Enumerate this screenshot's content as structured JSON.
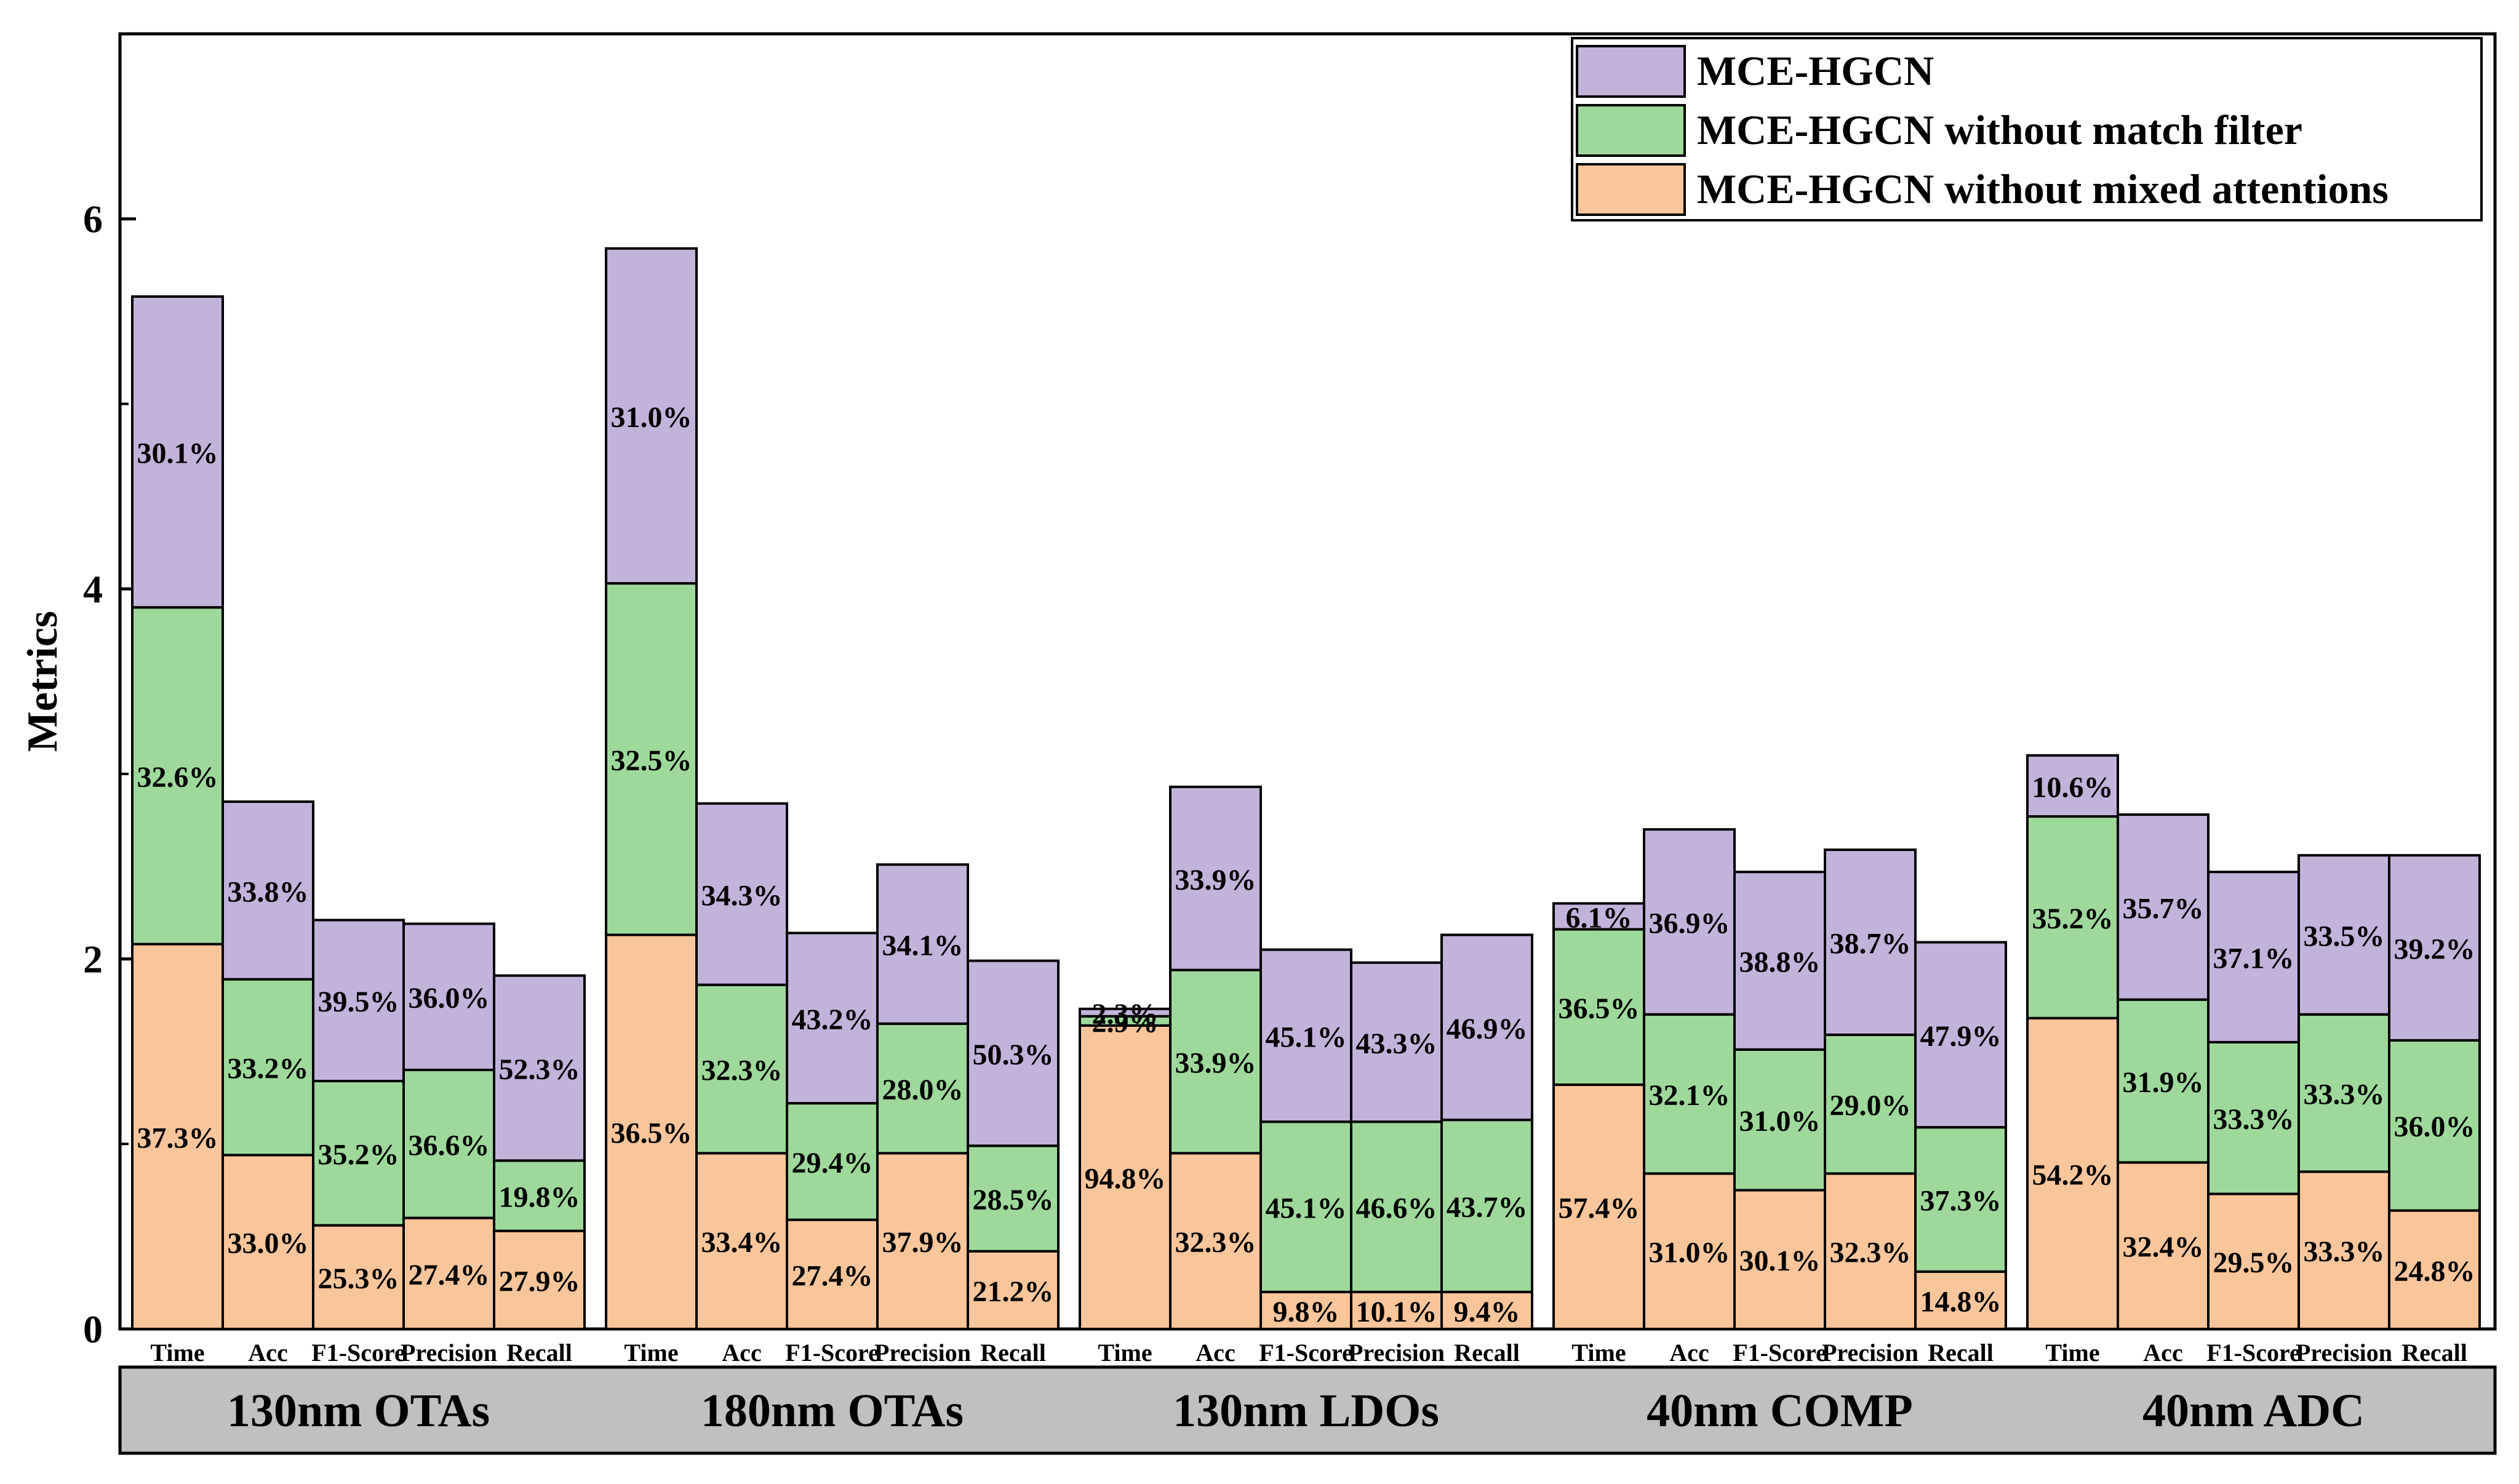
{
  "colors": {
    "orange": "#F9C59B",
    "green": "#9ED99B",
    "purple": "#C2B3DB",
    "band": "#C0C0C0",
    "stroke": "#000000"
  },
  "chart_data": {
    "type": "bar",
    "subtype": "stacked",
    "title": "",
    "xlabel": "",
    "ylabel": "Metrics",
    "ylim": [
      0,
      7
    ],
    "yticks": [
      0,
      2,
      4,
      6
    ],
    "grid": false,
    "legend_position": "top-right",
    "series": [
      {
        "name": "MCE-HGCN",
        "color": "purple"
      },
      {
        "name": "MCE-HGCN without match filter",
        "color": "green"
      },
      {
        "name": "MCE-HGCN without mixed attentions",
        "color": "orange"
      }
    ],
    "groups": [
      {
        "name": "130nm OTAs",
        "bars": [
          {
            "metric": "Time",
            "segments": [
              {
                "series": "MCE-HGCN without mixed attentions",
                "value": 2.08,
                "label": "37.3%"
              },
              {
                "series": "MCE-HGCN without match filter",
                "value": 1.82,
                "label": "32.6%"
              },
              {
                "series": "MCE-HGCN",
                "value": 1.68,
                "label": "30.1%"
              }
            ]
          },
          {
            "metric": "Acc",
            "segments": [
              {
                "series": "MCE-HGCN without mixed attentions",
                "value": 0.94,
                "label": "33.0%"
              },
              {
                "series": "MCE-HGCN without match filter",
                "value": 0.95,
                "label": "33.2%"
              },
              {
                "series": "MCE-HGCN",
                "value": 0.96,
                "label": "33.8%"
              }
            ]
          },
          {
            "metric": "F1-Score",
            "segments": [
              {
                "series": "MCE-HGCN without mixed attentions",
                "value": 0.56,
                "label": "25.3%"
              },
              {
                "series": "MCE-HGCN without match filter",
                "value": 0.78,
                "label": "35.2%"
              },
              {
                "series": "MCE-HGCN",
                "value": 0.87,
                "label": "39.5%"
              }
            ]
          },
          {
            "metric": "Precision",
            "segments": [
              {
                "series": "MCE-HGCN without mixed attentions",
                "value": 0.6,
                "label": "27.4%"
              },
              {
                "series": "MCE-HGCN without match filter",
                "value": 0.8,
                "label": "36.6%"
              },
              {
                "series": "MCE-HGCN",
                "value": 0.79,
                "label": "36.0%"
              }
            ]
          },
          {
            "metric": "Recall",
            "segments": [
              {
                "series": "MCE-HGCN without mixed attentions",
                "value": 0.53,
                "label": "27.9%"
              },
              {
                "series": "MCE-HGCN without match filter",
                "value": 0.38,
                "label": "19.8%"
              },
              {
                "series": "MCE-HGCN",
                "value": 1.0,
                "label": "52.3%"
              }
            ]
          }
        ]
      },
      {
        "name": "180nm OTAs",
        "bars": [
          {
            "metric": "Time",
            "segments": [
              {
                "series": "MCE-HGCN without mixed attentions",
                "value": 2.13,
                "label": "36.5%"
              },
              {
                "series": "MCE-HGCN without match filter",
                "value": 1.9,
                "label": "32.5%"
              },
              {
                "series": "MCE-HGCN",
                "value": 1.81,
                "label": "31.0%"
              }
            ]
          },
          {
            "metric": "Acc",
            "segments": [
              {
                "series": "MCE-HGCN without mixed attentions",
                "value": 0.95,
                "label": "33.4%"
              },
              {
                "series": "MCE-HGCN without match filter",
                "value": 0.91,
                "label": "32.3%"
              },
              {
                "series": "MCE-HGCN",
                "value": 0.98,
                "label": "34.3%"
              }
            ]
          },
          {
            "metric": "F1-Score",
            "segments": [
              {
                "series": "MCE-HGCN without mixed attentions",
                "value": 0.59,
                "label": "27.4%"
              },
              {
                "series": "MCE-HGCN without match filter",
                "value": 0.63,
                "label": "29.4%"
              },
              {
                "series": "MCE-HGCN",
                "value": 0.92,
                "label": "43.2%"
              }
            ]
          },
          {
            "metric": "Precision",
            "segments": [
              {
                "series": "MCE-HGCN without mixed attentions",
                "value": 0.95,
                "label": "37.9%"
              },
              {
                "series": "MCE-HGCN without match filter",
                "value": 0.7,
                "label": "28.0%"
              },
              {
                "series": "MCE-HGCN",
                "value": 0.86,
                "label": "34.1%"
              }
            ]
          },
          {
            "metric": "Recall",
            "segments": [
              {
                "series": "MCE-HGCN without mixed attentions",
                "value": 0.42,
                "label": "21.2%"
              },
              {
                "series": "MCE-HGCN without match filter",
                "value": 0.57,
                "label": "28.5%"
              },
              {
                "series": "MCE-HGCN",
                "value": 1.0,
                "label": "50.3%"
              }
            ]
          }
        ]
      },
      {
        "name": "130nm LDOs",
        "bars": [
          {
            "metric": "Time",
            "segments": [
              {
                "series": "MCE-HGCN without mixed attentions",
                "value": 1.64,
                "label": "94.8%"
              },
              {
                "series": "MCE-HGCN without match filter",
                "value": 0.05,
                "label": "2.9%"
              },
              {
                "series": "MCE-HGCN",
                "value": 0.04,
                "label": "2.3%"
              }
            ]
          },
          {
            "metric": "Acc",
            "segments": [
              {
                "series": "MCE-HGCN without mixed attentions",
                "value": 0.95,
                "label": "32.3%"
              },
              {
                "series": "MCE-HGCN without match filter",
                "value": 0.99,
                "label": "33.9%"
              },
              {
                "series": "MCE-HGCN",
                "value": 0.99,
                "label": "33.9%"
              }
            ]
          },
          {
            "metric": "F1-Score",
            "segments": [
              {
                "series": "MCE-HGCN without mixed attentions",
                "value": 0.2,
                "label": "9.8%"
              },
              {
                "series": "MCE-HGCN without match filter",
                "value": 0.92,
                "label": "45.1%"
              },
              {
                "series": "MCE-HGCN",
                "value": 0.93,
                "label": "45.1%"
              }
            ]
          },
          {
            "metric": "Precision",
            "segments": [
              {
                "series": "MCE-HGCN without mixed attentions",
                "value": 0.2,
                "label": "10.1%"
              },
              {
                "series": "MCE-HGCN without match filter",
                "value": 0.92,
                "label": "46.6%"
              },
              {
                "series": "MCE-HGCN",
                "value": 0.86,
                "label": "43.3%"
              }
            ]
          },
          {
            "metric": "Recall",
            "segments": [
              {
                "series": "MCE-HGCN without mixed attentions",
                "value": 0.2,
                "label": "9.4%"
              },
              {
                "series": "MCE-HGCN without match filter",
                "value": 0.93,
                "label": "43.7%"
              },
              {
                "series": "MCE-HGCN",
                "value": 1.0,
                "label": "46.9%"
              }
            ]
          }
        ]
      },
      {
        "name": "40nm COMP",
        "bars": [
          {
            "metric": "Time",
            "segments": [
              {
                "series": "MCE-HGCN without mixed attentions",
                "value": 1.32,
                "label": "57.4%"
              },
              {
                "series": "MCE-HGCN without match filter",
                "value": 0.84,
                "label": "36.5%"
              },
              {
                "series": "MCE-HGCN",
                "value": 0.14,
                "label": "6.1%"
              }
            ]
          },
          {
            "metric": "Acc",
            "segments": [
              {
                "series": "MCE-HGCN without mixed attentions",
                "value": 0.84,
                "label": "31.0%"
              },
              {
                "series": "MCE-HGCN without match filter",
                "value": 0.86,
                "label": "32.1%"
              },
              {
                "series": "MCE-HGCN",
                "value": 1.0,
                "label": "36.9%"
              }
            ]
          },
          {
            "metric": "F1-Score",
            "segments": [
              {
                "series": "MCE-HGCN without mixed attentions",
                "value": 0.75,
                "label": "30.1%"
              },
              {
                "series": "MCE-HGCN without match filter",
                "value": 0.76,
                "label": "31.0%"
              },
              {
                "series": "MCE-HGCN",
                "value": 0.96,
                "label": "38.8%"
              }
            ]
          },
          {
            "metric": "Precision",
            "segments": [
              {
                "series": "MCE-HGCN without mixed attentions",
                "value": 0.84,
                "label": "32.3%"
              },
              {
                "series": "MCE-HGCN without match filter",
                "value": 0.75,
                "label": "29.0%"
              },
              {
                "series": "MCE-HGCN",
                "value": 1.0,
                "label": "38.7%"
              }
            ]
          },
          {
            "metric": "Recall",
            "segments": [
              {
                "series": "MCE-HGCN without mixed attentions",
                "value": 0.31,
                "label": "14.8%"
              },
              {
                "series": "MCE-HGCN without match filter",
                "value": 0.78,
                "label": "37.3%"
              },
              {
                "series": "MCE-HGCN",
                "value": 1.0,
                "label": "47.9%"
              }
            ]
          }
        ]
      },
      {
        "name": "40nm ADC",
        "bars": [
          {
            "metric": "Time",
            "segments": [
              {
                "series": "MCE-HGCN without mixed attentions",
                "value": 1.68,
                "label": "54.2%"
              },
              {
                "series": "MCE-HGCN without match filter",
                "value": 1.09,
                "label": "35.2%"
              },
              {
                "series": "MCE-HGCN",
                "value": 0.33,
                "label": "10.6%"
              }
            ]
          },
          {
            "metric": "Acc",
            "segments": [
              {
                "series": "MCE-HGCN without mixed attentions",
                "value": 0.9,
                "label": "32.4%"
              },
              {
                "series": "MCE-HGCN without match filter",
                "value": 0.88,
                "label": "31.9%"
              },
              {
                "series": "MCE-HGCN",
                "value": 1.0,
                "label": "35.7%"
              }
            ]
          },
          {
            "metric": "F1-Score",
            "segments": [
              {
                "series": "MCE-HGCN without mixed attentions",
                "value": 0.73,
                "label": "29.5%"
              },
              {
                "series": "MCE-HGCN without match filter",
                "value": 0.82,
                "label": "33.3%"
              },
              {
                "series": "MCE-HGCN",
                "value": 0.92,
                "label": "37.1%"
              }
            ]
          },
          {
            "metric": "Precision",
            "segments": [
              {
                "series": "MCE-HGCN without mixed attentions",
                "value": 0.85,
                "label": "33.3%"
              },
              {
                "series": "MCE-HGCN without match filter",
                "value": 0.85,
                "label": "33.3%"
              },
              {
                "series": "MCE-HGCN",
                "value": 0.86,
                "label": "33.5%"
              }
            ]
          },
          {
            "metric": "Recall",
            "segments": [
              {
                "series": "MCE-HGCN without mixed attentions",
                "value": 0.64,
                "label": "24.8%"
              },
              {
                "series": "MCE-HGCN without match filter",
                "value": 0.92,
                "label": "36.0%"
              },
              {
                "series": "MCE-HGCN",
                "value": 1.0,
                "label": "39.2%"
              }
            ]
          }
        ]
      }
    ]
  }
}
